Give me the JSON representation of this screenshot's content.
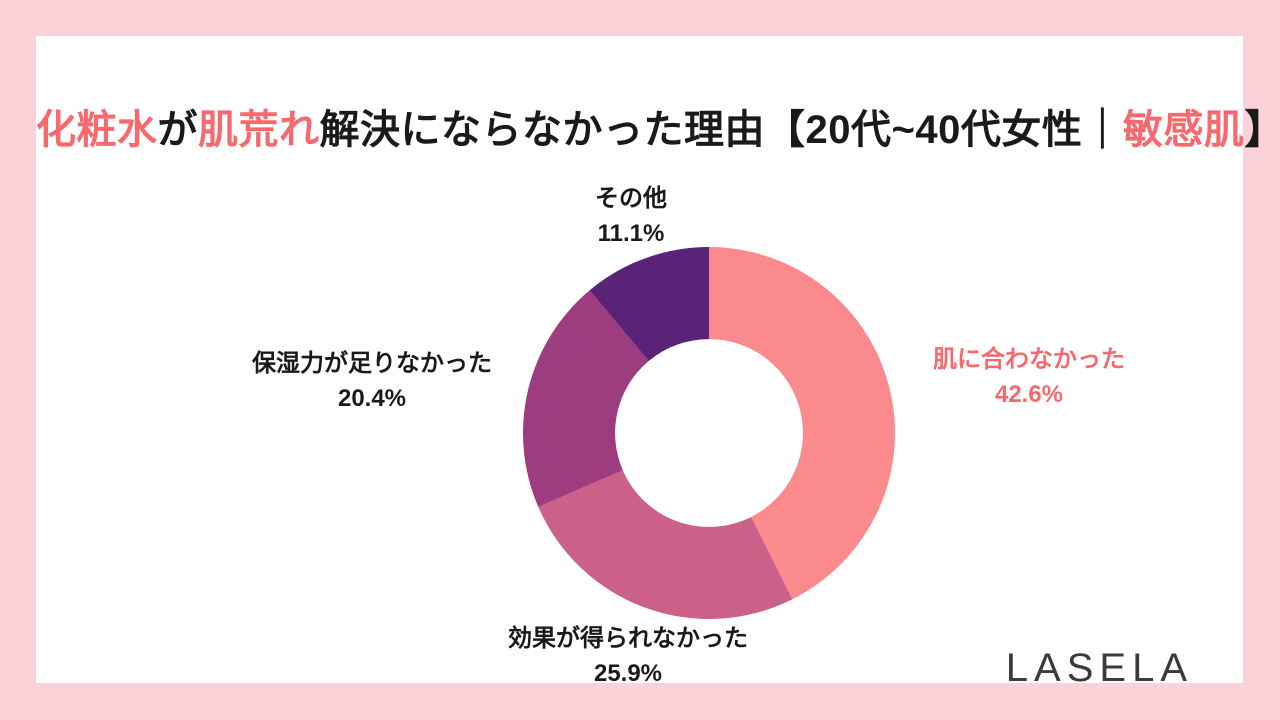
{
  "colors": {
    "background": "#FAD2D7",
    "card": "#FFFFFF",
    "accent": "#F8696E",
    "text_dark": "#1A1A1A",
    "logo": "#3B3B3B"
  },
  "title": {
    "segments": [
      {
        "text": "化粧水",
        "emphasis": true
      },
      {
        "text": "が",
        "emphasis": false
      },
      {
        "text": "肌荒れ",
        "emphasis": true
      },
      {
        "text": "解決にならなかった理由【20代~40代女性｜",
        "emphasis": false
      },
      {
        "text": "敏感肌",
        "emphasis": true
      },
      {
        "text": "】",
        "emphasis": false
      }
    ]
  },
  "logo": {
    "text": "LASELA"
  },
  "chart_data": {
    "type": "donut",
    "title": "化粧水が肌荒れ解決にならなかった理由【20代~40代女性｜敏感肌】",
    "start_angle_deg": 0,
    "direction": "clockwise",
    "inner_radius_ratio": 0.505,
    "legend_position": "outside-labels",
    "segments": [
      {
        "label": "肌に合わなかった",
        "value": 42.6,
        "percent_label": "42.6%",
        "color": "#FB8A8D",
        "label_color": "#F8696E"
      },
      {
        "label": "効果が得られなかった",
        "value": 25.9,
        "percent_label": "25.9%",
        "color": "#CB6089",
        "label_color": "#1A1A1A"
      },
      {
        "label": "保湿力が足りなかった",
        "value": 20.4,
        "percent_label": "20.4%",
        "color": "#9D3C7F",
        "label_color": "#1A1A1A"
      },
      {
        "label": "その他",
        "value": 11.1,
        "percent_label": "11.1%",
        "color": "#5B2377",
        "label_color": "#1A1A1A"
      }
    ]
  }
}
